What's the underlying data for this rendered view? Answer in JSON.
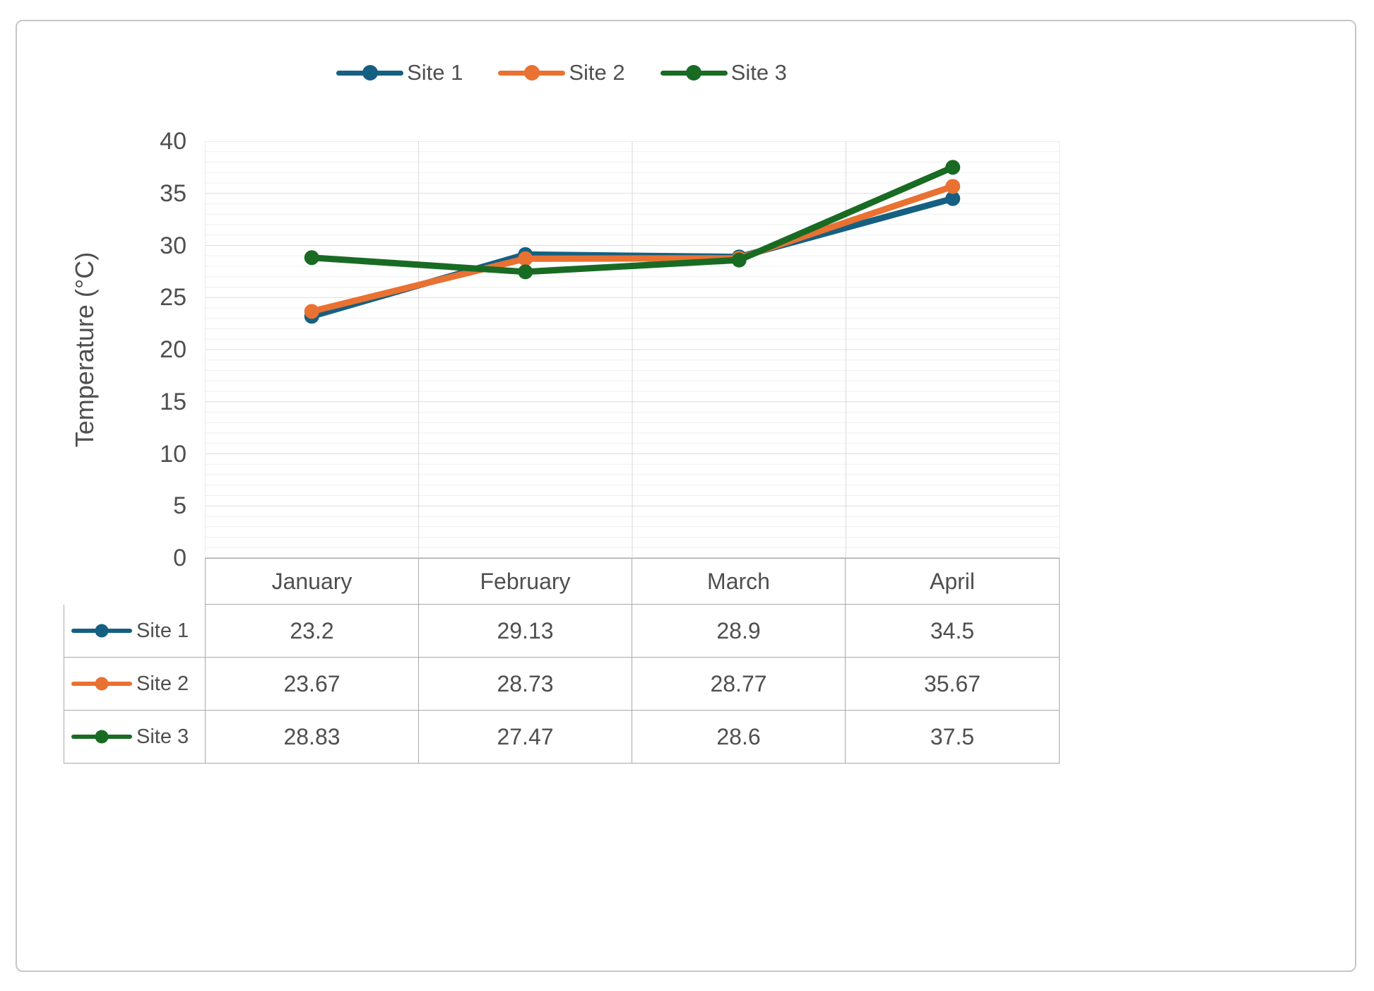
{
  "figure": {
    "background": "#FFFFFF",
    "border_color": "#C6C6C6"
  },
  "chart_data": {
    "type": "line",
    "categories": [
      "January",
      "February",
      "March",
      "April"
    ],
    "series": [
      {
        "name": "Site 1",
        "color": "#156082",
        "values": [
          23.2,
          29.13,
          28.9,
          34.5
        ]
      },
      {
        "name": "Site 2",
        "color": "#E97132",
        "values": [
          23.67,
          28.73,
          28.77,
          35.67
        ]
      },
      {
        "name": "Site 3",
        "color": "#196B24",
        "values": [
          28.83,
          27.47,
          28.6,
          37.5
        ]
      }
    ],
    "ylabel": "Temperature (°C)",
    "xlabel": "",
    "ylim": [
      0,
      40
    ],
    "y_ticks": [
      40,
      35,
      30,
      25,
      20,
      15,
      10,
      5,
      0
    ],
    "y_major_step": 5,
    "y_minor_step": 1,
    "grid": true,
    "legend_position": "top",
    "has_data_table": true,
    "marker": "circle"
  },
  "colors": {
    "text": "#4F4F4F",
    "grid_minor": "#EFEFEF",
    "grid_major": "#DEDEDE",
    "grid_vertical": "#D9D9D9",
    "axis_line": "#A9A9A9",
    "table_border": "#A9A9A9"
  }
}
